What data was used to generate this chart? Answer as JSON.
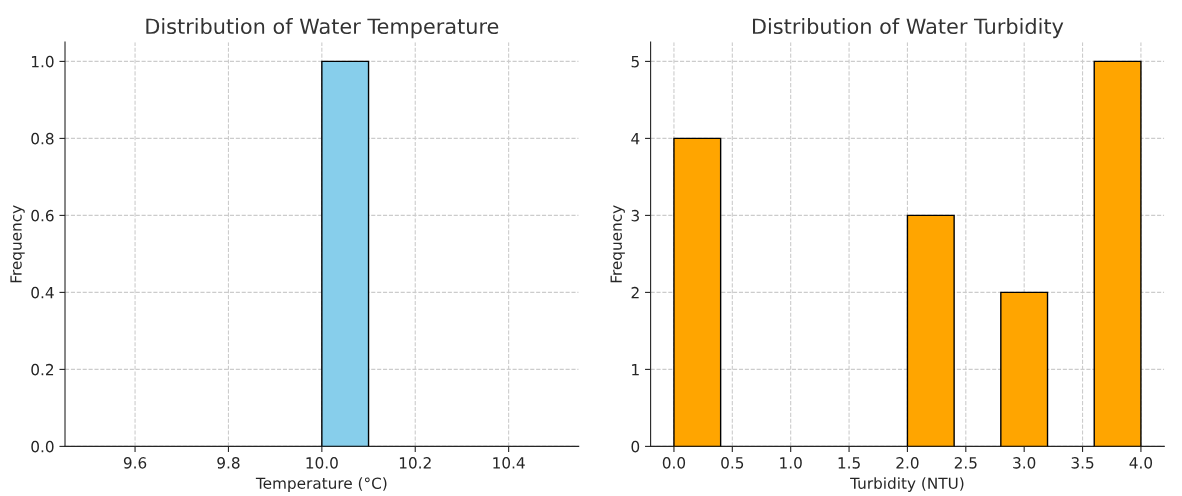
{
  "chart_data": [
    {
      "type": "histogram",
      "title": "Distribution of Water Temperature",
      "xlabel": "Temperature (°C)",
      "ylabel": "Frequency",
      "color": "#87ceeb",
      "bins": [
        9.5,
        9.6,
        9.7,
        9.8,
        9.9,
        10.0,
        10.1,
        10.2,
        10.3,
        10.4,
        10.5
      ],
      "values": [
        0,
        0,
        0,
        0,
        0,
        1,
        0,
        0,
        0,
        0
      ],
      "xlim": [
        9.45,
        10.55
      ],
      "xticks": [
        {
          "value": 9.6,
          "label": "9.6"
        },
        {
          "value": 9.8,
          "label": "9.8"
        },
        {
          "value": 10.0,
          "label": "10.0"
        },
        {
          "value": 10.2,
          "label": "10.2"
        },
        {
          "value": 10.4,
          "label": "10.4"
        }
      ],
      "ylim": [
        0,
        1.05
      ],
      "yticks": [
        {
          "value": 0,
          "label": "0.0"
        },
        {
          "value": 0.2,
          "label": "0.2"
        },
        {
          "value": 0.4,
          "label": "0.4"
        },
        {
          "value": 0.6,
          "label": "0.6"
        },
        {
          "value": 0.8,
          "label": "0.8"
        },
        {
          "value": 1.0,
          "label": "1.0"
        }
      ],
      "grid": true,
      "line_style": "dashed"
    },
    {
      "type": "histogram",
      "title": "Distribution of Water Turbidity",
      "xlabel": "Turbidity (NTU)",
      "ylabel": "Frequency",
      "color": "#ffa500",
      "bins": [
        0.0,
        0.4,
        0.8,
        1.2,
        1.6,
        2.0,
        2.4,
        2.8,
        3.2,
        3.6,
        4.0
      ],
      "values": [
        4,
        0,
        0,
        0,
        0,
        3,
        0,
        2,
        0,
        5
      ],
      "xlim": [
        -0.2,
        4.2
      ],
      "xticks": [
        {
          "value": 0.0,
          "label": "0.0"
        },
        {
          "value": 0.5,
          "label": "0.5"
        },
        {
          "value": 1.0,
          "label": "1.0"
        },
        {
          "value": 1.5,
          "label": "1.5"
        },
        {
          "value": 2.0,
          "label": "2.0"
        },
        {
          "value": 2.5,
          "label": "2.5"
        },
        {
          "value": 3.0,
          "label": "3.0"
        },
        {
          "value": 3.5,
          "label": "3.5"
        },
        {
          "value": 4.0,
          "label": "4.0"
        }
      ],
      "ylim": [
        0,
        5.25
      ],
      "yticks": [
        0,
        1,
        2,
        3,
        4,
        5
      ],
      "grid": true,
      "line_style": "dashed"
    }
  ]
}
